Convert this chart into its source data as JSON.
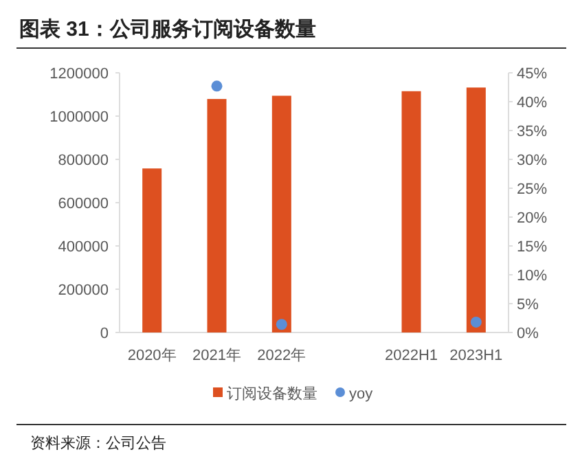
{
  "chart_data": {
    "type": "bar",
    "title": "图表 31：公司服务订阅设备数量",
    "categories": [
      "2020年",
      "2021年",
      "2022年",
      null,
      "2022H1",
      "2023H1"
    ],
    "series": [
      {
        "name": "订阅设备数量",
        "color": "#dd5020",
        "values": [
          758000,
          1079000,
          1094000,
          null,
          1115000,
          1132000
        ]
      },
      {
        "name": "yoy",
        "type": "scatter",
        "axis": "y2",
        "color": "#5b8ed6",
        "values": [
          null,
          42.7,
          1.4,
          null,
          null,
          1.8
        ]
      }
    ],
    "ylim": [
      0,
      1200000
    ],
    "yticks": [
      0,
      200000,
      400000,
      600000,
      800000,
      1000000,
      1200000
    ],
    "y2lim": [
      0,
      45
    ],
    "y2ticks": [
      {
        "value": 0,
        "label": "0%"
      },
      {
        "value": 5,
        "label": "5%"
      },
      {
        "value": 10,
        "label": "10%"
      },
      {
        "value": 15,
        "label": "15%"
      },
      {
        "value": 20,
        "label": "20%"
      },
      {
        "value": 25,
        "label": "25%"
      },
      {
        "value": 30,
        "label": "30%"
      },
      {
        "value": 35,
        "label": "35%"
      },
      {
        "value": 40,
        "label": "40%"
      },
      {
        "value": 45,
        "label": "45%"
      }
    ],
    "marker": "circle",
    "grid": false,
    "legend": "bottom",
    "annotations": [
      "资料来源：公司公告"
    ]
  }
}
